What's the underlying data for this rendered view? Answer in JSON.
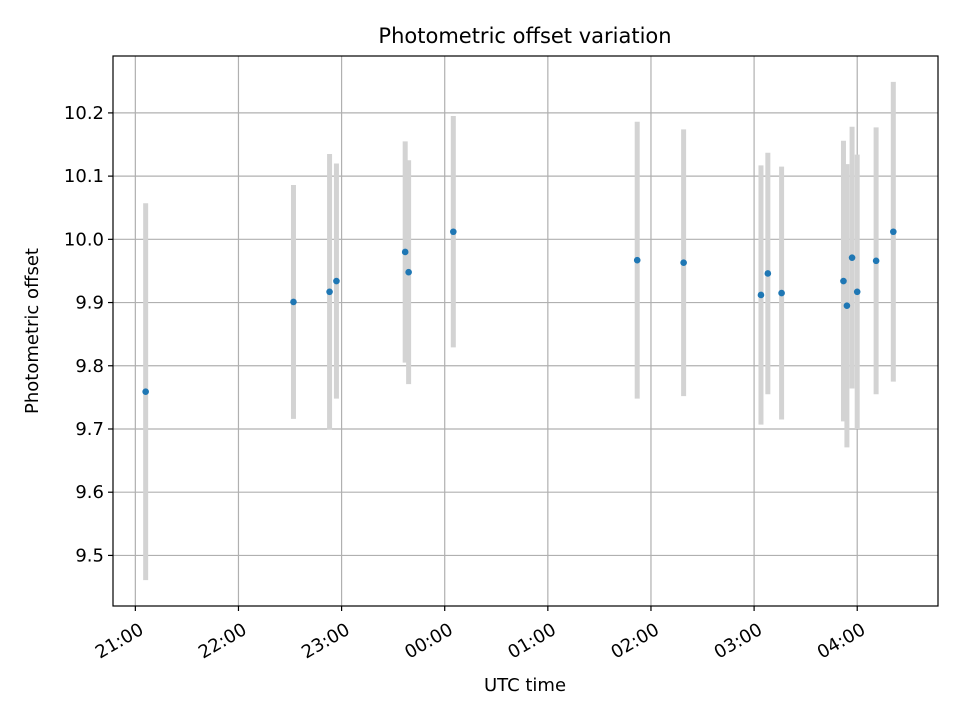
{
  "chart_data": {
    "type": "scatter",
    "title": "Photometric offset variation",
    "xlabel": "UTC time",
    "ylabel": "Photometric offset",
    "x_axis_type": "time",
    "xlim": [
      "20:47",
      "04:47"
    ],
    "ylim": [
      9.42,
      10.29
    ],
    "grid": true,
    "x_ticks": [
      "21:00",
      "22:00",
      "23:00",
      "00:00",
      "01:00",
      "02:00",
      "03:00",
      "04:00"
    ],
    "y_ticks": [
      "9.5",
      "9.6",
      "9.7",
      "9.8",
      "9.9",
      "10.0",
      "10.1",
      "10.2"
    ],
    "point_color": "#1f77b4",
    "errorbar_color": "#d3d3d3",
    "series": [
      {
        "points": [
          {
            "x": "21:06",
            "y": 9.759,
            "err": 0.298
          },
          {
            "x": "22:32",
            "y": 9.901,
            "err": 0.185
          },
          {
            "x": "22:53",
            "y": 9.917,
            "err": 0.218
          },
          {
            "x": "22:57",
            "y": 9.934,
            "err": 0.186
          },
          {
            "x": "23:37",
            "y": 9.98,
            "err": 0.175
          },
          {
            "x": "23:39",
            "y": 9.948,
            "err": 0.177
          },
          {
            "x": "00:05",
            "y": 10.012,
            "err": 0.183
          },
          {
            "x": "01:52",
            "y": 9.967,
            "err": 0.219
          },
          {
            "x": "02:19",
            "y": 9.963,
            "err": 0.211
          },
          {
            "x": "03:04",
            "y": 9.912,
            "err": 0.205
          },
          {
            "x": "03:08",
            "y": 9.946,
            "err": 0.191
          },
          {
            "x": "03:16",
            "y": 9.915,
            "err": 0.2
          },
          {
            "x": "03:52",
            "y": 9.934,
            "err": 0.222
          },
          {
            "x": "03:54",
            "y": 9.895,
            "err": 0.224
          },
          {
            "x": "03:57",
            "y": 9.971,
            "err": 0.207
          },
          {
            "x": "04:00",
            "y": 9.917,
            "err": 0.217
          },
          {
            "x": "04:11",
            "y": 9.966,
            "err": 0.211
          },
          {
            "x": "04:21",
            "y": 10.012,
            "err": 0.237
          }
        ]
      }
    ]
  }
}
